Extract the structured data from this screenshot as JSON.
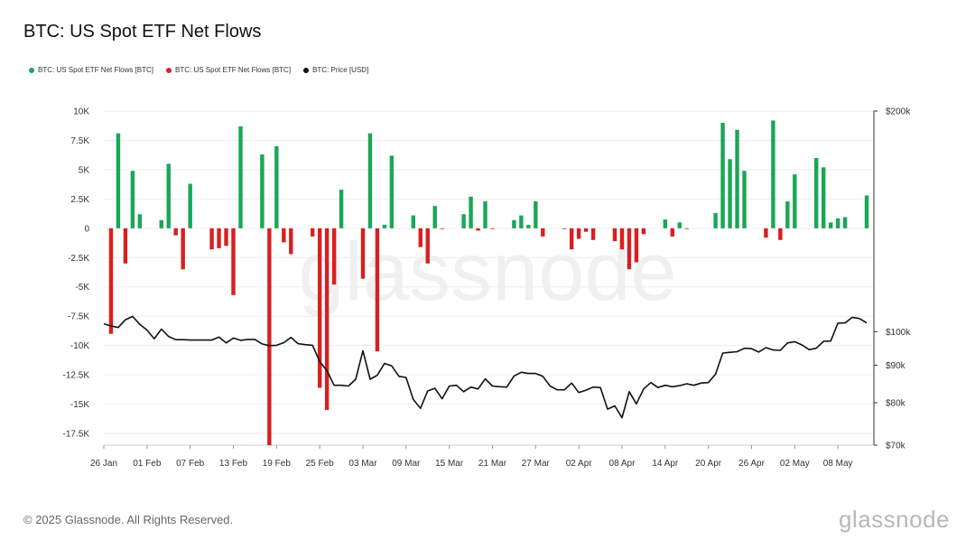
{
  "chart_data": {
    "type": "bar",
    "title": "BTC: US Spot ETF Net Flows",
    "legend_placement": "top-left",
    "grid": true,
    "watermark": "glassnode",
    "colors": {
      "positive": "#1aa657",
      "negative": "#d91f1f",
      "price": "#111111"
    },
    "x_ticks": [
      "26 Jan",
      "01 Feb",
      "07 Feb",
      "13 Feb",
      "19 Feb",
      "25 Feb",
      "03 Mar",
      "09 Mar",
      "15 Mar",
      "21 Mar",
      "27 Mar",
      "02 Apr",
      "08 Apr",
      "14 Apr",
      "20 Apr",
      "26 Apr",
      "02 May",
      "08 May"
    ],
    "y_left": {
      "ylim": [
        -18500,
        10000
      ],
      "ticks": [
        10000,
        7500,
        5000,
        2500,
        0,
        -2500,
        -5000,
        -7500,
        -10000,
        -12500,
        -15000,
        -17500
      ],
      "tick_labels": [
        "10K",
        "7.5K",
        "5K",
        "2.5K",
        "0",
        "-2.5K",
        "-5K",
        "-7.5K",
        "-10K",
        "-12.5K",
        "-15K",
        "-17.5K"
      ]
    },
    "y_right": {
      "ylim": [
        70000,
        200000
      ],
      "scale": "log",
      "ticks": [
        200000,
        100000,
        90000,
        80000,
        70000
      ],
      "tick_labels": [
        "$200k",
        "$100k",
        "$90k",
        "$80k",
        "$70k"
      ]
    },
    "series": [
      {
        "name": "BTC: US Spot ETF Net Flows [BTC]",
        "kind": "bar",
        "x": [
          "2025-01-27",
          "2025-01-28",
          "2025-01-29",
          "2025-01-30",
          "2025-01-31",
          "2025-02-03",
          "2025-02-04",
          "2025-02-05",
          "2025-02-06",
          "2025-02-07",
          "2025-02-10",
          "2025-02-11",
          "2025-02-12",
          "2025-02-13",
          "2025-02-14",
          "2025-02-17",
          "2025-02-18",
          "2025-02-19",
          "2025-02-20",
          "2025-02-21",
          "2025-02-24",
          "2025-02-25",
          "2025-02-26",
          "2025-02-27",
          "2025-02-28",
          "2025-03-03",
          "2025-03-04",
          "2025-03-05",
          "2025-03-06",
          "2025-03-07",
          "2025-03-10",
          "2025-03-11",
          "2025-03-12",
          "2025-03-13",
          "2025-03-14",
          "2025-03-17",
          "2025-03-18",
          "2025-03-19",
          "2025-03-20",
          "2025-03-21",
          "2025-03-24",
          "2025-03-25",
          "2025-03-26",
          "2025-03-27",
          "2025-03-28",
          "2025-03-31",
          "2025-04-01",
          "2025-04-02",
          "2025-04-03",
          "2025-04-04",
          "2025-04-07",
          "2025-04-08",
          "2025-04-09",
          "2025-04-10",
          "2025-04-11",
          "2025-04-14",
          "2025-04-15",
          "2025-04-16",
          "2025-04-17",
          "2025-04-21",
          "2025-04-22",
          "2025-04-23",
          "2025-04-24",
          "2025-04-25",
          "2025-04-28",
          "2025-04-29",
          "2025-04-30",
          "2025-05-01",
          "2025-05-02",
          "2025-05-05",
          "2025-05-06",
          "2025-05-07",
          "2025-05-08",
          "2025-05-09",
          "2025-05-12"
        ],
        "values": [
          -9000,
          8100,
          -3000,
          4900,
          1200,
          700,
          5500,
          -600,
          -3500,
          3800,
          -1800,
          -1700,
          -1500,
          -5700,
          8700,
          6300,
          -18500,
          7000,
          -1200,
          -2200,
          -700,
          -13600,
          -15500,
          -4800,
          3300,
          -4300,
          8100,
          -10500,
          300,
          6200,
          1100,
          -1600,
          -3000,
          1900,
          -50,
          1200,
          2700,
          -200,
          2300,
          -30,
          700,
          1100,
          300,
          2300,
          -700,
          -30,
          -1800,
          -900,
          -300,
          -1000,
          -1100,
          -1800,
          -3500,
          -2900,
          -500,
          750,
          -700,
          500,
          -30,
          1300,
          9000,
          5900,
          8400,
          4900,
          -800,
          9200,
          -1000,
          2300,
          4600,
          6000,
          5200,
          500,
          850,
          950,
          2800
        ]
      },
      {
        "name": "BTC: US Spot ETF Net Flows [BTC]",
        "kind": "bar-negative"
      },
      {
        "name": "BTC: Price [USD]",
        "kind": "line",
        "x": [
          "2025-01-26",
          "2025-01-27",
          "2025-01-28",
          "2025-01-29",
          "2025-01-30",
          "2025-01-31",
          "2025-02-01",
          "2025-02-02",
          "2025-02-03",
          "2025-02-04",
          "2025-02-05",
          "2025-02-06",
          "2025-02-07",
          "2025-02-08",
          "2025-02-09",
          "2025-02-10",
          "2025-02-11",
          "2025-02-12",
          "2025-02-13",
          "2025-02-14",
          "2025-02-15",
          "2025-02-16",
          "2025-02-17",
          "2025-02-18",
          "2025-02-19",
          "2025-02-20",
          "2025-02-21",
          "2025-02-22",
          "2025-02-23",
          "2025-02-24",
          "2025-02-25",
          "2025-02-26",
          "2025-02-27",
          "2025-02-28",
          "2025-03-01",
          "2025-03-02",
          "2025-03-03",
          "2025-03-04",
          "2025-03-05",
          "2025-03-06",
          "2025-03-07",
          "2025-03-08",
          "2025-03-09",
          "2025-03-10",
          "2025-03-11",
          "2025-03-12",
          "2025-03-13",
          "2025-03-14",
          "2025-03-15",
          "2025-03-16",
          "2025-03-17",
          "2025-03-18",
          "2025-03-19",
          "2025-03-20",
          "2025-03-21",
          "2025-03-22",
          "2025-03-23",
          "2025-03-24",
          "2025-03-25",
          "2025-03-26",
          "2025-03-27",
          "2025-03-28",
          "2025-03-29",
          "2025-03-30",
          "2025-03-31",
          "2025-04-01",
          "2025-04-02",
          "2025-04-03",
          "2025-04-04",
          "2025-04-05",
          "2025-04-06",
          "2025-04-07",
          "2025-04-08",
          "2025-04-09",
          "2025-04-10",
          "2025-04-11",
          "2025-04-12",
          "2025-04-13",
          "2025-04-14",
          "2025-04-15",
          "2025-04-16",
          "2025-04-17",
          "2025-04-18",
          "2025-04-19",
          "2025-04-20",
          "2025-04-21",
          "2025-04-22",
          "2025-04-23",
          "2025-04-24",
          "2025-04-25",
          "2025-04-26",
          "2025-04-27",
          "2025-04-28",
          "2025-04-29",
          "2025-04-30",
          "2025-05-01",
          "2025-05-02",
          "2025-05-03",
          "2025-05-04",
          "2025-05-05",
          "2025-05-06",
          "2025-05-07",
          "2025-05-08",
          "2025-05-09",
          "2025-05-10",
          "2025-05-11",
          "2025-05-12"
        ],
        "values": [
          102500,
          101800,
          101300,
          103800,
          104900,
          102300,
          100500,
          97800,
          100800,
          98500,
          97500,
          97500,
          97400,
          97400,
          97400,
          97400,
          98300,
          96500,
          98000,
          97300,
          97600,
          97600,
          96200,
          95700,
          95800,
          96600,
          98200,
          96300,
          96000,
          95800,
          91000,
          88500,
          84500,
          84500,
          84300,
          86100,
          94200,
          86100,
          87200,
          90500,
          89800,
          86900,
          86600,
          80800,
          78600,
          83000,
          83700,
          81000,
          84300,
          84500,
          82800,
          84000,
          83500,
          86200,
          84300,
          84100,
          84000,
          87000,
          88000,
          87700,
          87700,
          86900,
          84300,
          83300,
          83300,
          85100,
          82600,
          83200,
          84000,
          83900,
          78400,
          79200,
          76300,
          82800,
          79700,
          83500,
          85200,
          83900,
          84500,
          84100,
          84400,
          84900,
          84500,
          85100,
          85200,
          87500,
          93500,
          93700,
          93900,
          94900,
          94800,
          93800,
          95100,
          94400,
          94300,
          96500,
          96900,
          95900,
          94500,
          94900,
          97000,
          97100,
          102700,
          102800,
          104600,
          104200,
          102800
        ]
      }
    ]
  },
  "footer": {
    "copyright": "© 2025 Glassnode. All Rights Reserved.",
    "brand": "glassnode"
  }
}
